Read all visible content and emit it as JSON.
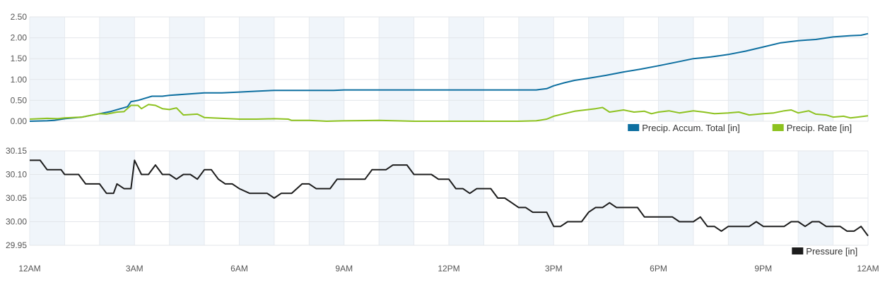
{
  "chart_data": [
    {
      "type": "line",
      "ylim": [
        0,
        2.5
      ],
      "y_ticks": [
        "0.00",
        "0.50",
        "1.00",
        "1.50",
        "2.00",
        "2.50"
      ],
      "x_range": [
        0,
        24
      ],
      "x_ticks": [
        {
          "h": 0,
          "label": "12AM"
        },
        {
          "h": 3,
          "label": "3AM"
        },
        {
          "h": 6,
          "label": "6AM"
        },
        {
          "h": 9,
          "label": "9AM"
        },
        {
          "h": 12,
          "label": "12PM"
        },
        {
          "h": 15,
          "label": "3PM"
        },
        {
          "h": 18,
          "label": "6PM"
        },
        {
          "h": 21,
          "label": "9PM"
        },
        {
          "h": 24,
          "label": "12AM"
        }
      ],
      "grid": true,
      "legend_position": "bottom-right",
      "series": [
        {
          "name": "Precip. Accum. Total [in]",
          "color": "#0d6fa0",
          "points": [
            [
              0,
              0.0
            ],
            [
              0.5,
              0.01
            ],
            [
              0.7,
              0.02
            ],
            [
              1,
              0.06
            ],
            [
              1.5,
              0.1
            ],
            [
              2,
              0.18
            ],
            [
              2.3,
              0.23
            ],
            [
              2.6,
              0.3
            ],
            [
              2.8,
              0.35
            ],
            [
              2.9,
              0.47
            ],
            [
              3.1,
              0.5
            ],
            [
              3.3,
              0.55
            ],
            [
              3.5,
              0.6
            ],
            [
              3.8,
              0.6
            ],
            [
              4,
              0.62
            ],
            [
              4.5,
              0.65
            ],
            [
              5,
              0.68
            ],
            [
              5.5,
              0.68
            ],
            [
              6,
              0.7
            ],
            [
              6.5,
              0.72
            ],
            [
              7,
              0.74
            ],
            [
              8,
              0.74
            ],
            [
              8.7,
              0.74
            ],
            [
              9,
              0.75
            ],
            [
              10,
              0.75
            ],
            [
              11,
              0.75
            ],
            [
              12,
              0.75
            ],
            [
              13,
              0.75
            ],
            [
              14,
              0.75
            ],
            [
              14.5,
              0.75
            ],
            [
              14.8,
              0.78
            ],
            [
              15,
              0.85
            ],
            [
              15.3,
              0.92
            ],
            [
              15.6,
              0.98
            ],
            [
              16,
              1.03
            ],
            [
              16.5,
              1.1
            ],
            [
              17,
              1.18
            ],
            [
              17.5,
              1.25
            ],
            [
              18,
              1.33
            ],
            [
              18.3,
              1.38
            ],
            [
              18.6,
              1.43
            ],
            [
              19,
              1.5
            ],
            [
              19.5,
              1.54
            ],
            [
              20,
              1.6
            ],
            [
              20.5,
              1.68
            ],
            [
              21,
              1.78
            ],
            [
              21.5,
              1.88
            ],
            [
              22,
              1.93
            ],
            [
              22.5,
              1.96
            ],
            [
              23,
              2.02
            ],
            [
              23.5,
              2.05
            ],
            [
              23.8,
              2.06
            ],
            [
              24,
              2.1
            ]
          ]
        },
        {
          "name": "Precip. Rate [in]",
          "color": "#8dc21f",
          "points": [
            [
              0,
              0.05
            ],
            [
              0.5,
              0.07
            ],
            [
              0.8,
              0.06
            ],
            [
              1,
              0.08
            ],
            [
              1.5,
              0.1
            ],
            [
              2,
              0.18
            ],
            [
              2.2,
              0.17
            ],
            [
              2.5,
              0.22
            ],
            [
              2.7,
              0.23
            ],
            [
              2.9,
              0.38
            ],
            [
              3.1,
              0.38
            ],
            [
              3.2,
              0.3
            ],
            [
              3.4,
              0.4
            ],
            [
              3.6,
              0.38
            ],
            [
              3.8,
              0.3
            ],
            [
              4,
              0.28
            ],
            [
              4.2,
              0.32
            ],
            [
              4.4,
              0.15
            ],
            [
              4.6,
              0.16
            ],
            [
              4.8,
              0.17
            ],
            [
              5,
              0.09
            ],
            [
              5.5,
              0.07
            ],
            [
              6,
              0.05
            ],
            [
              6.5,
              0.05
            ],
            [
              7,
              0.06
            ],
            [
              7.4,
              0.05
            ],
            [
              7.5,
              0.02
            ],
            [
              8,
              0.02
            ],
            [
              8.5,
              0.0
            ],
            [
              9,
              0.01
            ],
            [
              10,
              0.02
            ],
            [
              11,
              0.0
            ],
            [
              12,
              0.0
            ],
            [
              13,
              0.0
            ],
            [
              14,
              0.0
            ],
            [
              14.5,
              0.01
            ],
            [
              14.8,
              0.05
            ],
            [
              15,
              0.12
            ],
            [
              15.3,
              0.18
            ],
            [
              15.6,
              0.24
            ],
            [
              15.9,
              0.27
            ],
            [
              16.2,
              0.3
            ],
            [
              16.4,
              0.33
            ],
            [
              16.6,
              0.22
            ],
            [
              17,
              0.27
            ],
            [
              17.3,
              0.22
            ],
            [
              17.6,
              0.24
            ],
            [
              17.8,
              0.18
            ],
            [
              18,
              0.22
            ],
            [
              18.3,
              0.25
            ],
            [
              18.6,
              0.2
            ],
            [
              19,
              0.25
            ],
            [
              19.3,
              0.22
            ],
            [
              19.6,
              0.18
            ],
            [
              20,
              0.2
            ],
            [
              20.3,
              0.22
            ],
            [
              20.6,
              0.15
            ],
            [
              21,
              0.18
            ],
            [
              21.3,
              0.2
            ],
            [
              21.6,
              0.25
            ],
            [
              21.8,
              0.27
            ],
            [
              22,
              0.2
            ],
            [
              22.3,
              0.25
            ],
            [
              22.5,
              0.17
            ],
            [
              22.8,
              0.15
            ],
            [
              23,
              0.1
            ],
            [
              23.3,
              0.12
            ],
            [
              23.5,
              0.08
            ],
            [
              23.7,
              0.1
            ],
            [
              24,
              0.13
            ]
          ]
        }
      ]
    },
    {
      "type": "line",
      "ylim": [
        29.95,
        30.15
      ],
      "y_ticks": [
        "29.95",
        "30.00",
        "30.05",
        "30.10",
        "30.15"
      ],
      "x_range": [
        0,
        24
      ],
      "grid": true,
      "legend_position": "bottom-right",
      "series": [
        {
          "name": "Pressure [in]",
          "color": "#1c1c1c",
          "points": [
            [
              0,
              30.13
            ],
            [
              0.3,
              30.13
            ],
            [
              0.5,
              30.11
            ],
            [
              0.9,
              30.11
            ],
            [
              1,
              30.1
            ],
            [
              1.4,
              30.1
            ],
            [
              1.6,
              30.08
            ],
            [
              2,
              30.08
            ],
            [
              2.2,
              30.06
            ],
            [
              2.4,
              30.06
            ],
            [
              2.5,
              30.08
            ],
            [
              2.7,
              30.07
            ],
            [
              2.9,
              30.07
            ],
            [
              3.0,
              30.13
            ],
            [
              3.2,
              30.1
            ],
            [
              3.4,
              30.1
            ],
            [
              3.6,
              30.12
            ],
            [
              3.8,
              30.1
            ],
            [
              4,
              30.1
            ],
            [
              4.2,
              30.09
            ],
            [
              4.4,
              30.1
            ],
            [
              4.6,
              30.1
            ],
            [
              4.8,
              30.09
            ],
            [
              5,
              30.11
            ],
            [
              5.2,
              30.11
            ],
            [
              5.4,
              30.09
            ],
            [
              5.6,
              30.08
            ],
            [
              5.8,
              30.08
            ],
            [
              6,
              30.07
            ],
            [
              6.3,
              30.06
            ],
            [
              6.8,
              30.06
            ],
            [
              7,
              30.05
            ],
            [
              7.2,
              30.06
            ],
            [
              7.5,
              30.06
            ],
            [
              7.8,
              30.08
            ],
            [
              8,
              30.08
            ],
            [
              8.2,
              30.07
            ],
            [
              8.6,
              30.07
            ],
            [
              8.8,
              30.09
            ],
            [
              9.2,
              30.09
            ],
            [
              9.6,
              30.09
            ],
            [
              9.8,
              30.11
            ],
            [
              10.2,
              30.11
            ],
            [
              10.4,
              30.12
            ],
            [
              10.8,
              30.12
            ],
            [
              11,
              30.1
            ],
            [
              11.5,
              30.1
            ],
            [
              11.7,
              30.09
            ],
            [
              12,
              30.09
            ],
            [
              12.2,
              30.07
            ],
            [
              12.4,
              30.07
            ],
            [
              12.6,
              30.06
            ],
            [
              12.8,
              30.07
            ],
            [
              13.2,
              30.07
            ],
            [
              13.4,
              30.05
            ],
            [
              13.6,
              30.05
            ],
            [
              13.8,
              30.04
            ],
            [
              14,
              30.03
            ],
            [
              14.2,
              30.03
            ],
            [
              14.4,
              30.02
            ],
            [
              14.8,
              30.02
            ],
            [
              15,
              29.99
            ],
            [
              15.2,
              29.99
            ],
            [
              15.4,
              30.0
            ],
            [
              15.8,
              30.0
            ],
            [
              16,
              30.02
            ],
            [
              16.2,
              30.03
            ],
            [
              16.4,
              30.03
            ],
            [
              16.6,
              30.04
            ],
            [
              16.8,
              30.03
            ],
            [
              17.4,
              30.03
            ],
            [
              17.6,
              30.01
            ],
            [
              18,
              30.01
            ],
            [
              18.4,
              30.01
            ],
            [
              18.6,
              30.0
            ],
            [
              19,
              30.0
            ],
            [
              19.2,
              30.01
            ],
            [
              19.4,
              29.99
            ],
            [
              19.6,
              29.99
            ],
            [
              19.8,
              29.98
            ],
            [
              20,
              29.99
            ],
            [
              20.6,
              29.99
            ],
            [
              20.8,
              30.0
            ],
            [
              21,
              29.99
            ],
            [
              21.6,
              29.99
            ],
            [
              21.8,
              30.0
            ],
            [
              22,
              30.0
            ],
            [
              22.2,
              29.99
            ],
            [
              22.4,
              30.0
            ],
            [
              22.6,
              30.0
            ],
            [
              22.8,
              29.99
            ],
            [
              23.2,
              29.99
            ],
            [
              23.4,
              29.98
            ],
            [
              23.6,
              29.98
            ],
            [
              23.8,
              29.99
            ],
            [
              24,
              29.97
            ]
          ]
        }
      ]
    }
  ]
}
